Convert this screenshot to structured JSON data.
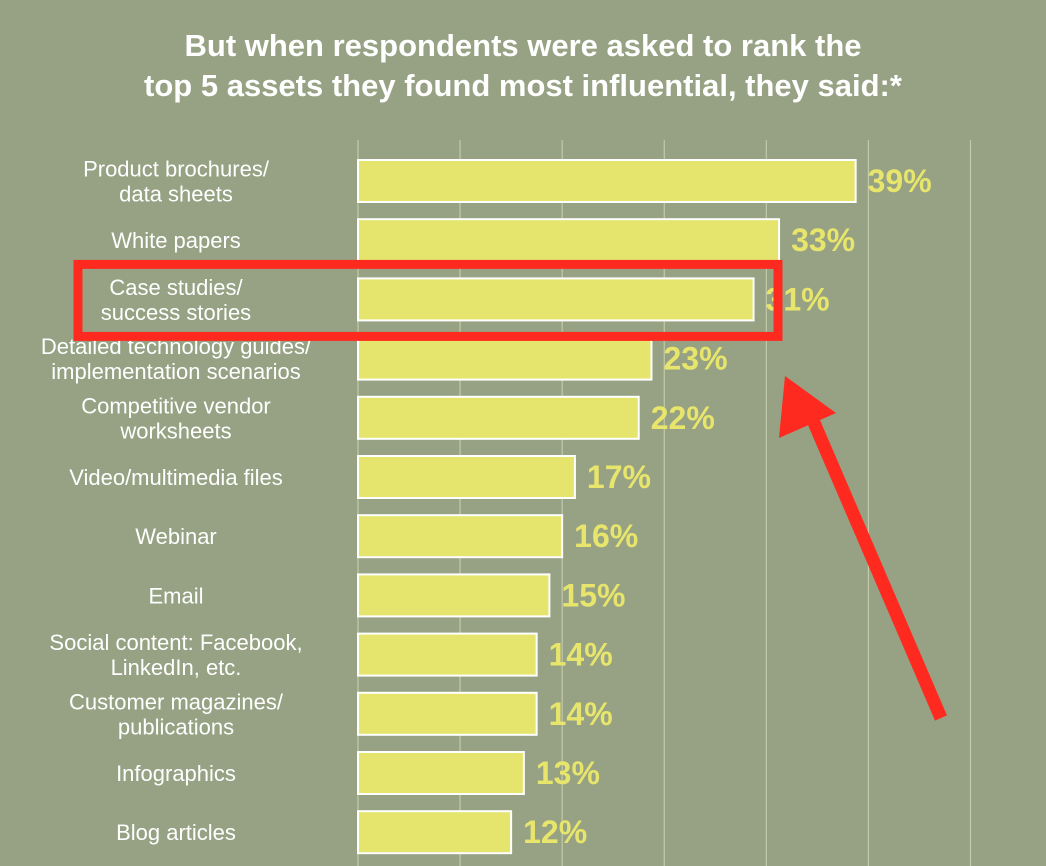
{
  "title_lines": [
    "But when respondents were asked to rank the",
    "top 5 assets they found most influential, they said:*"
  ],
  "colors": {
    "background": "#96a283",
    "bar_fill": "#e5e56e",
    "bar_stroke": "#ffffff",
    "value_text": "#e8e56c",
    "gridline": "#c3caa8",
    "highlight": "#ff2a1f"
  },
  "annotations": {
    "highlight_box": {
      "category_index": 2,
      "shape": "rectangle"
    },
    "arrow": {
      "points_to": "highlight_box"
    }
  },
  "chart_data": {
    "type": "bar",
    "orientation": "horizontal",
    "categories": [
      [
        "Product brochures/",
        "data sheets"
      ],
      [
        "White papers"
      ],
      [
        "Case studies/",
        "success stories"
      ],
      [
        "Detailed technology guides/",
        "implementation scenarios"
      ],
      [
        "Competitive vendor",
        "worksheets"
      ],
      [
        "Video/multimedia files"
      ],
      [
        "Webinar"
      ],
      [
        "Email"
      ],
      [
        "Social content: Facebook,",
        "LinkedIn, etc."
      ],
      [
        "Customer magazines/",
        "publications"
      ],
      [
        "Infographics"
      ],
      [
        "Blog articles"
      ]
    ],
    "values": [
      39,
      33,
      31,
      23,
      22,
      17,
      16,
      15,
      14,
      14,
      13,
      12
    ],
    "value_labels": [
      "39%",
      "33%",
      "31%",
      "23%",
      "22%",
      "17%",
      "16%",
      "15%",
      "14%",
      "14%",
      "13%",
      "12%"
    ],
    "unit": "%",
    "xlim": [
      0,
      50
    ],
    "grid": true
  }
}
